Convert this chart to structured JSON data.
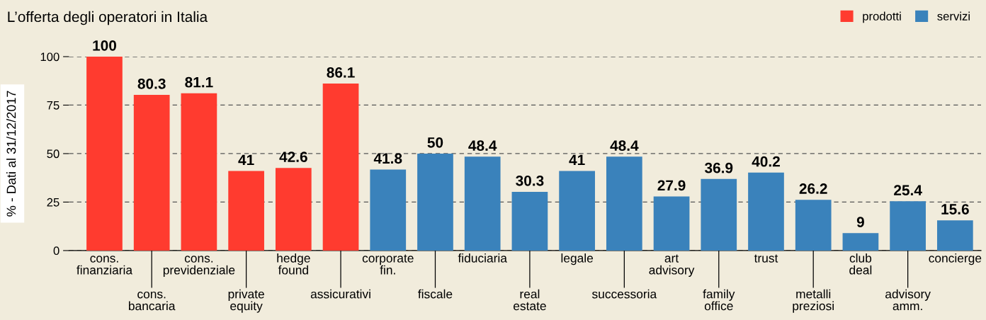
{
  "chart_data": {
    "type": "bar",
    "title": "L’offerta degli operatori in Italia",
    "ylabel": "% - Dati al 31/12/2017",
    "categories": [
      "cons.\nfinanziaria",
      "cons.\nbancaria",
      "cons.\nprevidenziale",
      "private\nequity",
      "hedge\nfound",
      "assicurativi",
      "corporate\nfin.",
      "fiscale",
      "fiduciaria",
      "real\nestate",
      "legale",
      "successoria",
      "art\nadvisory",
      "family\noffice",
      "trust",
      "metalli\npreziosi",
      "club\ndeal",
      "advisory\namm.",
      "concierge"
    ],
    "series": [
      {
        "name": "prodotti",
        "color": "#ff3b2f",
        "values": [
          100,
          80.3,
          81.1,
          41,
          42.6,
          86.1,
          null,
          null,
          null,
          null,
          null,
          null,
          null,
          null,
          null,
          null,
          null,
          null,
          null
        ]
      },
      {
        "name": "servizi",
        "color": "#3a82bb",
        "values": [
          null,
          null,
          null,
          null,
          null,
          null,
          41.8,
          50,
          48.4,
          30.3,
          41,
          48.4,
          27.9,
          36.9,
          40.2,
          26.2,
          9,
          25.4,
          15.6
        ]
      }
    ],
    "ylim": [
      0,
      100
    ],
    "yticks": [
      0,
      25,
      50,
      75,
      100
    ],
    "grid": "y",
    "legend": "top right",
    "data_labels": true
  }
}
